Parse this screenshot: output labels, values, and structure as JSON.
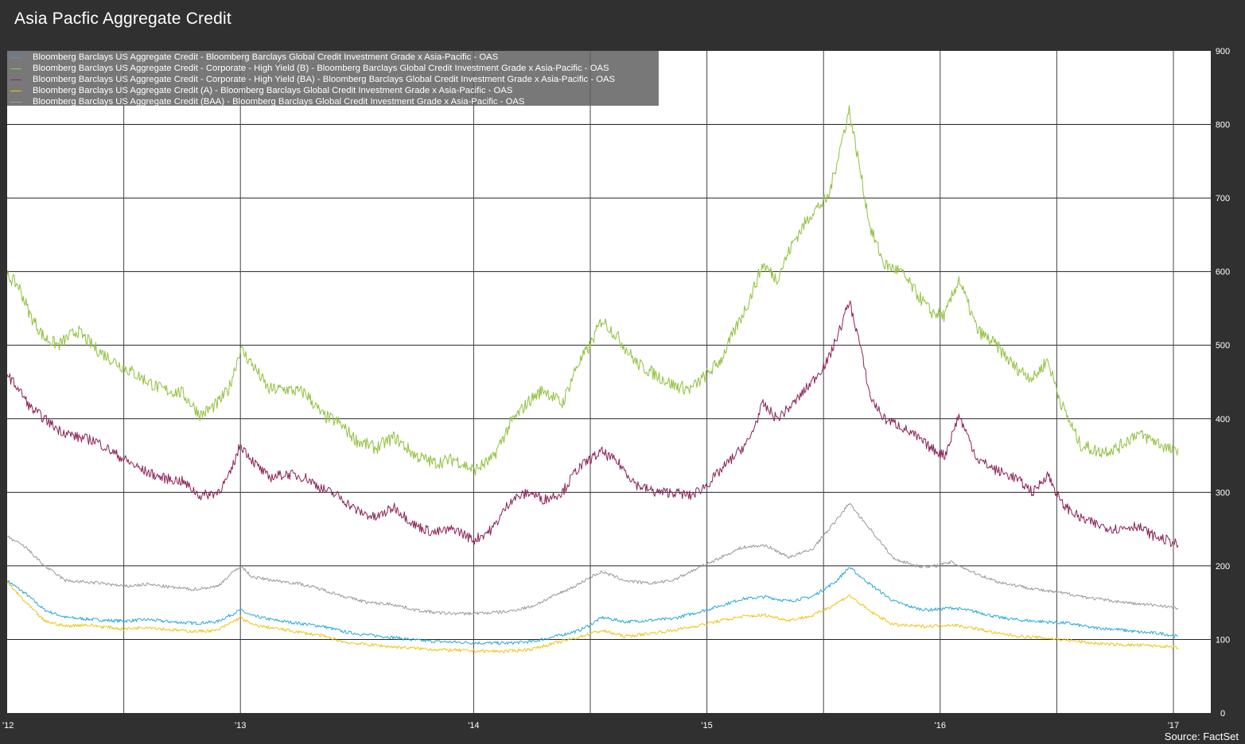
{
  "title": "Asia Pacfic Aggregate Credit",
  "source": "Source: FactSet",
  "chart_data": {
    "type": "line",
    "xlim": [
      2012.0,
      2017.1
    ],
    "ylim": [
      0,
      900
    ],
    "y_ticks": [
      0,
      100,
      200,
      300,
      400,
      500,
      600,
      700,
      800,
      900
    ],
    "x_ticks": [
      {
        "value": 2012.0,
        "label": "'12"
      },
      {
        "value": 2013.0,
        "label": "'13"
      },
      {
        "value": 2014.0,
        "label": "'14"
      },
      {
        "value": 2015.0,
        "label": "'15"
      },
      {
        "value": 2016.0,
        "label": "'16"
      },
      {
        "value": 2017.0,
        "label": "'17"
      }
    ],
    "x_gridlines": [
      2012.5,
      2013.0,
      2014.0,
      2014.5,
      2015.0,
      2015.5,
      2016.0,
      2016.5,
      2017.0
    ],
    "grid": true,
    "y_axis_side": "right",
    "legend_position": "top-left",
    "series": [
      {
        "name": "Bloomberg Barclays US Aggregate Credit - Bloomberg Barclays Global Credit Investment Grade x Asia-Pacific - OAS",
        "color": "#2aa9d9",
        "x": [
          2012.0,
          2012.08,
          2012.16,
          2012.25,
          2012.33,
          2012.42,
          2012.5,
          2012.6,
          2012.7,
          2012.8,
          2012.9,
          2013.0,
          2013.05,
          2013.15,
          2013.25,
          2013.35,
          2013.45,
          2013.55,
          2013.65,
          2013.75,
          2013.85,
          2013.95,
          2014.05,
          2014.15,
          2014.25,
          2014.35,
          2014.45,
          2014.5,
          2014.55,
          2014.65,
          2014.75,
          2014.85,
          2014.95,
          2015.05,
          2015.15,
          2015.25,
          2015.35,
          2015.45,
          2015.55,
          2015.61,
          2015.7,
          2015.8,
          2015.9,
          2015.95,
          2016.05,
          2016.15,
          2016.25,
          2016.35,
          2016.45,
          2016.55,
          2016.65,
          2016.75,
          2016.85,
          2016.95,
          2017.02
        ],
        "y": [
          180,
          162,
          140,
          130,
          128,
          126,
          125,
          127,
          124,
          122,
          124,
          140,
          132,
          126,
          122,
          118,
          110,
          106,
          103,
          99,
          97,
          96,
          95,
          95,
          97,
          104,
          112,
          120,
          130,
          124,
          126,
          128,
          136,
          145,
          155,
          158,
          152,
          158,
          178,
          198,
          175,
          152,
          142,
          140,
          143,
          138,
          130,
          126,
          124,
          122,
          116,
          114,
          110,
          108,
          104
        ]
      },
      {
        "name": "Bloomberg Barclays US Aggregate Credit - Corporate - High Yield (B) - Bloomberg Barclays Global Credit Investment Grade x Asia-Pacific - OAS",
        "color": "#8fc13c",
        "x": [
          2012.0,
          2012.05,
          2012.1,
          2012.16,
          2012.22,
          2012.3,
          2012.38,
          2012.45,
          2012.5,
          2012.58,
          2012.66,
          2012.75,
          2012.83,
          2012.9,
          2012.95,
          2013.0,
          2013.06,
          2013.12,
          2013.2,
          2013.28,
          2013.35,
          2013.42,
          2013.5,
          2013.58,
          2013.66,
          2013.75,
          2013.83,
          2013.92,
          2014.0,
          2014.08,
          2014.16,
          2014.24,
          2014.3,
          2014.38,
          2014.44,
          2014.5,
          2014.55,
          2014.62,
          2014.7,
          2014.78,
          2014.86,
          2014.93,
          2015.0,
          2015.06,
          2015.12,
          2015.18,
          2015.24,
          2015.3,
          2015.37,
          2015.45,
          2015.52,
          2015.58,
          2015.61,
          2015.65,
          2015.7,
          2015.76,
          2015.83,
          2015.9,
          2015.96,
          2016.02,
          2016.08,
          2016.16,
          2016.24,
          2016.32,
          2016.4,
          2016.46,
          2016.52,
          2016.6,
          2016.68,
          2016.76,
          2016.84,
          2016.92,
          2017.0,
          2017.02
        ],
        "y": [
          595,
          580,
          540,
          510,
          500,
          520,
          495,
          480,
          470,
          455,
          440,
          435,
          405,
          420,
          440,
          495,
          470,
          440,
          440,
          435,
          405,
          395,
          370,
          360,
          375,
          350,
          340,
          345,
          330,
          345,
          395,
          425,
          440,
          420,
          470,
          500,
          535,
          510,
          475,
          460,
          445,
          440,
          460,
          480,
          520,
          560,
          610,
          590,
          640,
          680,
          700,
          780,
          820,
          750,
          660,
          610,
          600,
          570,
          545,
          540,
          590,
          520,
          500,
          470,
          455,
          480,
          420,
          365,
          355,
          360,
          380,
          370,
          355,
          360
        ]
      },
      {
        "name": "Bloomberg Barclays US Aggregate Credit - Corporate - High Yield (BA) - Bloomberg Barclays Global Credit Investment Grade x Asia-Pacific - OAS",
        "color": "#8c2258",
        "x": [
          2012.0,
          2012.05,
          2012.1,
          2012.16,
          2012.22,
          2012.3,
          2012.38,
          2012.45,
          2012.5,
          2012.58,
          2012.66,
          2012.75,
          2012.83,
          2012.9,
          2012.95,
          2013.0,
          2013.06,
          2013.12,
          2013.2,
          2013.28,
          2013.35,
          2013.42,
          2013.5,
          2013.58,
          2013.66,
          2013.75,
          2013.83,
          2013.92,
          2014.0,
          2014.08,
          2014.16,
          2014.24,
          2014.3,
          2014.38,
          2014.44,
          2014.5,
          2014.55,
          2014.62,
          2014.7,
          2014.78,
          2014.86,
          2014.93,
          2015.0,
          2015.06,
          2015.12,
          2015.18,
          2015.24,
          2015.3,
          2015.37,
          2015.45,
          2015.52,
          2015.58,
          2015.61,
          2015.65,
          2015.7,
          2015.76,
          2015.83,
          2015.9,
          2015.96,
          2016.02,
          2016.08,
          2016.16,
          2016.24,
          2016.32,
          2016.4,
          2016.46,
          2016.52,
          2016.6,
          2016.68,
          2016.76,
          2016.84,
          2016.92,
          2017.0,
          2017.02
        ],
        "y": [
          460,
          440,
          415,
          400,
          385,
          375,
          370,
          355,
          345,
          330,
          320,
          315,
          295,
          300,
          320,
          365,
          340,
          320,
          325,
          320,
          305,
          295,
          275,
          265,
          280,
          255,
          245,
          250,
          235,
          250,
          290,
          300,
          290,
          300,
          330,
          345,
          355,
          340,
          310,
          300,
          300,
          295,
          310,
          330,
          350,
          370,
          420,
          400,
          420,
          450,
          480,
          530,
          560,
          510,
          430,
          400,
          390,
          375,
          360,
          350,
          405,
          345,
          330,
          320,
          300,
          325,
          285,
          265,
          255,
          250,
          255,
          240,
          232,
          228
        ]
      },
      {
        "name": "Bloomberg Barclays US Aggregate Credit (A) - Bloomberg Barclays Global Credit Investment Grade x Asia-Pacific - OAS",
        "color": "#f0c419",
        "x": [
          2012.0,
          2012.08,
          2012.16,
          2012.25,
          2012.33,
          2012.42,
          2012.5,
          2012.6,
          2012.7,
          2012.8,
          2012.9,
          2013.0,
          2013.05,
          2013.15,
          2013.25,
          2013.35,
          2013.45,
          2013.55,
          2013.65,
          2013.75,
          2013.85,
          2013.95,
          2014.05,
          2014.15,
          2014.25,
          2014.35,
          2014.45,
          2014.5,
          2014.55,
          2014.65,
          2014.75,
          2014.85,
          2014.95,
          2015.05,
          2015.15,
          2015.25,
          2015.35,
          2015.45,
          2015.55,
          2015.61,
          2015.7,
          2015.8,
          2015.9,
          2015.95,
          2016.05,
          2016.15,
          2016.25,
          2016.35,
          2016.45,
          2016.55,
          2016.65,
          2016.75,
          2016.85,
          2016.95,
          2017.02
        ],
        "y": [
          178,
          150,
          125,
          118,
          120,
          117,
          114,
          117,
          113,
          111,
          112,
          130,
          120,
          115,
          110,
          105,
          96,
          93,
          90,
          88,
          86,
          85,
          84,
          84,
          87,
          95,
          103,
          108,
          112,
          104,
          108,
          112,
          118,
          125,
          131,
          133,
          126,
          132,
          148,
          160,
          138,
          120,
          118,
          118,
          120,
          115,
          108,
          104,
          102,
          99,
          95,
          93,
          92,
          91,
          88
        ]
      },
      {
        "name": "Bloomberg Barclays US Aggregate Credit (BAA) - Bloomberg Barclays Global Credit Investment Grade x Asia-Pacific - OAS",
        "color": "#9a9a9a",
        "x": [
          2012.0,
          2012.08,
          2012.16,
          2012.25,
          2012.33,
          2012.42,
          2012.5,
          2012.6,
          2012.7,
          2012.8,
          2012.9,
          2013.0,
          2013.05,
          2013.15,
          2013.25,
          2013.35,
          2013.45,
          2013.55,
          2013.65,
          2013.75,
          2013.85,
          2013.95,
          2014.05,
          2014.15,
          2014.25,
          2014.35,
          2014.45,
          2014.5,
          2014.55,
          2014.65,
          2014.75,
          2014.85,
          2014.95,
          2015.05,
          2015.15,
          2015.25,
          2015.35,
          2015.45,
          2015.55,
          2015.61,
          2015.7,
          2015.8,
          2015.9,
          2015.95,
          2016.05,
          2016.15,
          2016.25,
          2016.35,
          2016.45,
          2016.55,
          2016.65,
          2016.75,
          2016.85,
          2016.95,
          2017.02
        ],
        "y": [
          240,
          225,
          200,
          180,
          178,
          176,
          172,
          175,
          171,
          168,
          172,
          200,
          185,
          180,
          176,
          168,
          158,
          150,
          148,
          140,
          136,
          135,
          136,
          138,
          145,
          160,
          175,
          185,
          192,
          180,
          176,
          180,
          195,
          210,
          225,
          228,
          212,
          222,
          260,
          285,
          250,
          210,
          200,
          198,
          205,
          190,
          178,
          172,
          166,
          162,
          156,
          152,
          148,
          146,
          142
        ]
      }
    ]
  }
}
